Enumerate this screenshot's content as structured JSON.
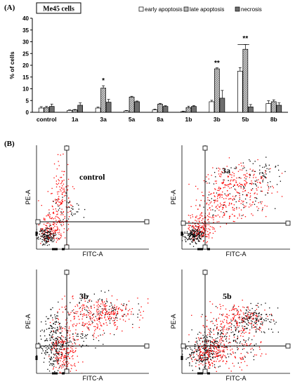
{
  "panel_a_label": "(A)",
  "panel_b_label": "(B)",
  "chart_data": {
    "type": "bar",
    "title": "Me45 cells",
    "ylabel": "% of cells",
    "xlabel": "",
    "ylim": [
      0,
      40
    ],
    "yticks": [
      0,
      5,
      10,
      15,
      20,
      25,
      30,
      35,
      40
    ],
    "categories": [
      "control",
      "1a",
      "3a",
      "5a",
      "8a",
      "1b",
      "3b",
      "5b",
      "8b"
    ],
    "series": [
      {
        "name": "early apoptosis",
        "values": [
          1.8,
          0.8,
          1.8,
          0.6,
          1.0,
          0.3,
          4.5,
          17.5,
          3.7
        ],
        "errors": [
          0.6,
          0.2,
          0.4,
          0.2,
          0.3,
          0.2,
          0.6,
          1.5,
          1.2
        ],
        "fill": "#ffffff"
      },
      {
        "name": "late apoptosis",
        "values": [
          2.0,
          1.0,
          10.3,
          6.5,
          3.5,
          2.0,
          18.5,
          26.8,
          4.5
        ],
        "errors": [
          0.5,
          0.2,
          1.0,
          0.3,
          0.3,
          0.6,
          0.4,
          2.0,
          0.8
        ],
        "fill": "#bdbdbd"
      },
      {
        "name": "necrosis",
        "values": [
          2.5,
          3.0,
          4.3,
          4.5,
          2.5,
          2.5,
          6.0,
          2.3,
          3.0
        ],
        "errors": [
          1.0,
          1.0,
          1.2,
          0.3,
          0.3,
          0.4,
          3.3,
          1.0,
          1.0
        ],
        "fill": "#6e6e6e"
      }
    ],
    "annotations": [
      {
        "text": "*",
        "category": "3a",
        "value": 12.5
      },
      {
        "text": "**",
        "category": "3b",
        "value": 20.0
      },
      {
        "text": "**",
        "category": "5b",
        "value": 30.5
      }
    ],
    "bracket": {
      "from_series": 0,
      "to_series": 1,
      "category": "5b",
      "value": 30.0
    },
    "grid": false,
    "legend": "top"
  },
  "plots": [
    {
      "label": "control",
      "xaxis": "FITC-A",
      "yaxis": "PE-A"
    },
    {
      "label": "3a",
      "xaxis": "FITC-A",
      "yaxis": "PE-A"
    },
    {
      "label": "3b",
      "xaxis": "FITC-A",
      "yaxis": "PE-A"
    },
    {
      "label": "5b",
      "xaxis": "FITC-A",
      "yaxis": "PE-A"
    }
  ],
  "colors": {
    "events_red": "#ff0000",
    "events_black": "#000000"
  }
}
